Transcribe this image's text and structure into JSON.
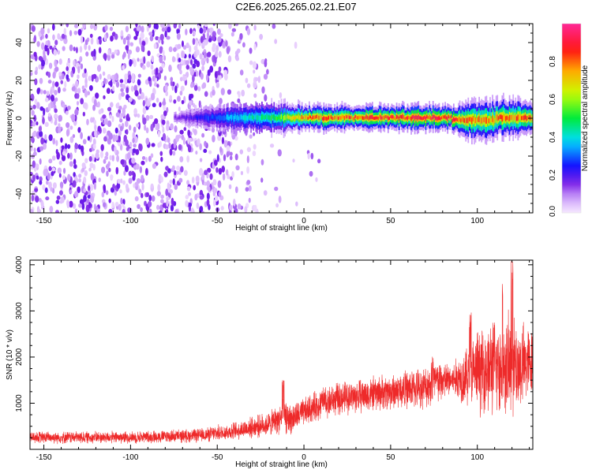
{
  "title": "C2E6.2025.265.02.21.E07",
  "colors": {
    "snr_line": "#ee2a2a",
    "axis": "#000000"
  },
  "chart_data": [
    {
      "type": "heatmap",
      "xlabel": "Height of straight line (km)",
      "ylabel": "Frequency (Hz)",
      "xlim": [
        -158,
        132
      ],
      "ylim": [
        -50,
        50
      ],
      "xticks": [
        -150,
        -100,
        -50,
        0,
        50,
        100
      ],
      "yticks": [
        40,
        20,
        0,
        -20,
        -40
      ],
      "colorbar": {
        "label": "Normalized spectral amplitude",
        "range": [
          0,
          1
        ],
        "ticks": [
          "0.2",
          "0.4",
          "0.6",
          "0.8"
        ],
        "tick_values": [
          0.2,
          0.4,
          0.6,
          0.8
        ],
        "bottom_label": "0.0"
      },
      "description_note": "Broadband low-amplitude scatter below about -45 km, fading out by about -12 km; narrow ridge near 0 Hz from about -75 km to 132 km, peaking near 0.9 between 0 and 130 km",
      "ridge_profile": [
        {
          "x": -75,
          "peak": 0.15,
          "half_width_hz": 2
        },
        {
          "x": -45,
          "peak": 0.35,
          "half_width_hz": 4
        },
        {
          "x": -15,
          "peak": 0.55,
          "half_width_hz": 4
        },
        {
          "x": 0,
          "peak": 0.85,
          "half_width_hz": 3
        },
        {
          "x": 50,
          "peak": 0.9,
          "half_width_hz": 3
        },
        {
          "x": 85,
          "peak": 0.9,
          "half_width_hz": 3
        },
        {
          "x": 100,
          "peak": 0.8,
          "half_width_hz": 5
        },
        {
          "x": 132,
          "peak": 0.85,
          "half_width_hz": 4
        }
      ]
    },
    {
      "type": "line",
      "xlabel": "Height of straight line (km)",
      "ylabel": "SNR (10 * v/v)",
      "xlim": [
        -158,
        132
      ],
      "ylim": [
        0,
        4100
      ],
      "xticks": [
        -150,
        -100,
        -50,
        0,
        50,
        100
      ],
      "yticks": [
        1000,
        2000,
        3000,
        4000
      ],
      "series": [
        {
          "envelope": {
            "x": [
              -158,
              -100,
              -60,
              -40,
              -20,
              -12,
              -8,
              0,
              10,
              20,
              50,
              70,
              75,
              85,
              95,
              100,
              110,
              120,
              132
            ],
            "mean": [
              260,
              260,
              300,
              400,
              550,
              700,
              650,
              800,
              1000,
              1100,
              1250,
              1350,
              1450,
              1500,
              1600,
              1700,
              1800,
              1750,
              1900
            ],
            "noise": [
              150,
              150,
              170,
              220,
              300,
              400,
              380,
              350,
              400,
              400,
              450,
              500,
              600,
              400,
              800,
              1000,
              1200,
              1300,
              800
            ]
          },
          "peaks": [
            {
              "x": -12,
              "y": 1500
            },
            {
              "x": 10,
              "y": 1300
            },
            {
              "x": 74,
              "y": 2050
            },
            {
              "x": 96,
              "y": 3000
            },
            {
              "x": 115,
              "y": 3800
            },
            {
              "x": 120,
              "y": 4100
            }
          ]
        }
      ]
    }
  ]
}
